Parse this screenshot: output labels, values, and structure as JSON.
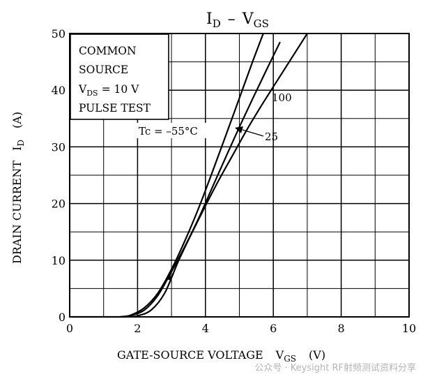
{
  "chart_data": {
    "type": "line",
    "title": "I_D – V_GS",
    "title_main": "I",
    "title_sub": "D",
    "title_sep": "–",
    "title_main2": "V",
    "title_sub2": "GS",
    "xlabel": "GATE-SOURCE VOLTAGE  V_GS  (V)",
    "xlabel_main": "GATE-SOURCE VOLTAGE",
    "xlabel_sym": "V",
    "xlabel_sub": "GS",
    "xlabel_unit": "(V)",
    "ylabel": "DRAIN CURRENT  I_D  (A)",
    "ylabel_main": "DRAIN CURRENT",
    "ylabel_sym": "I",
    "ylabel_sub": "D",
    "ylabel_unit": "(A)",
    "xlim": [
      0,
      10
    ],
    "ylim": [
      0,
      50
    ],
    "xticks": [
      "0",
      "2",
      "4",
      "6",
      "8",
      "10"
    ],
    "yticks": [
      "0",
      "10",
      "20",
      "30",
      "40",
      "50"
    ],
    "grid": true,
    "conditions": {
      "line1": "COMMON",
      "line2": "SOURCE",
      "line3_main": "V",
      "line3_sub": "DS",
      "line3_rest": "= 10 V",
      "line4": "PULSE TEST"
    },
    "annotations": {
      "tc": "Tc = –55°C",
      "t100": "100",
      "t25": "25"
    },
    "series": [
      {
        "name": "-55",
        "x": [
          1.5,
          1.8,
          2.2,
          2.6,
          3.0,
          3.4,
          3.8,
          4.2,
          4.6,
          5.0,
          5.4,
          5.8
        ],
        "y": [
          0,
          0.3,
          1.6,
          4.2,
          8.4,
          13.5,
          19.2,
          25.5,
          32.0,
          38.6,
          45.2,
          51.5
        ]
      },
      {
        "name": "25",
        "x": [
          1.5,
          1.8,
          2.2,
          2.6,
          3.0,
          3.4,
          3.8,
          4.2,
          4.6,
          5.0,
          5.4,
          5.8,
          6.2
        ],
        "y": [
          0,
          0.25,
          1.2,
          3.8,
          8.0,
          12.5,
          17.4,
          22.8,
          28.2,
          33.5,
          38.6,
          43.6,
          48.5
        ]
      },
      {
        "name": "100",
        "x": [
          1.7,
          2.0,
          2.4,
          2.8,
          3.2,
          3.6,
          4.0,
          4.4,
          4.8,
          5.2,
          5.6,
          6.0,
          6.5,
          7.0
        ],
        "y": [
          0,
          0.2,
          1.2,
          4.2,
          9.8,
          14.8,
          19.6,
          24.2,
          28.5,
          32.8,
          36.8,
          40.6,
          45.3,
          50.0
        ]
      }
    ]
  },
  "watermark": "公众号 · Keysight RF射频测试资料分享"
}
